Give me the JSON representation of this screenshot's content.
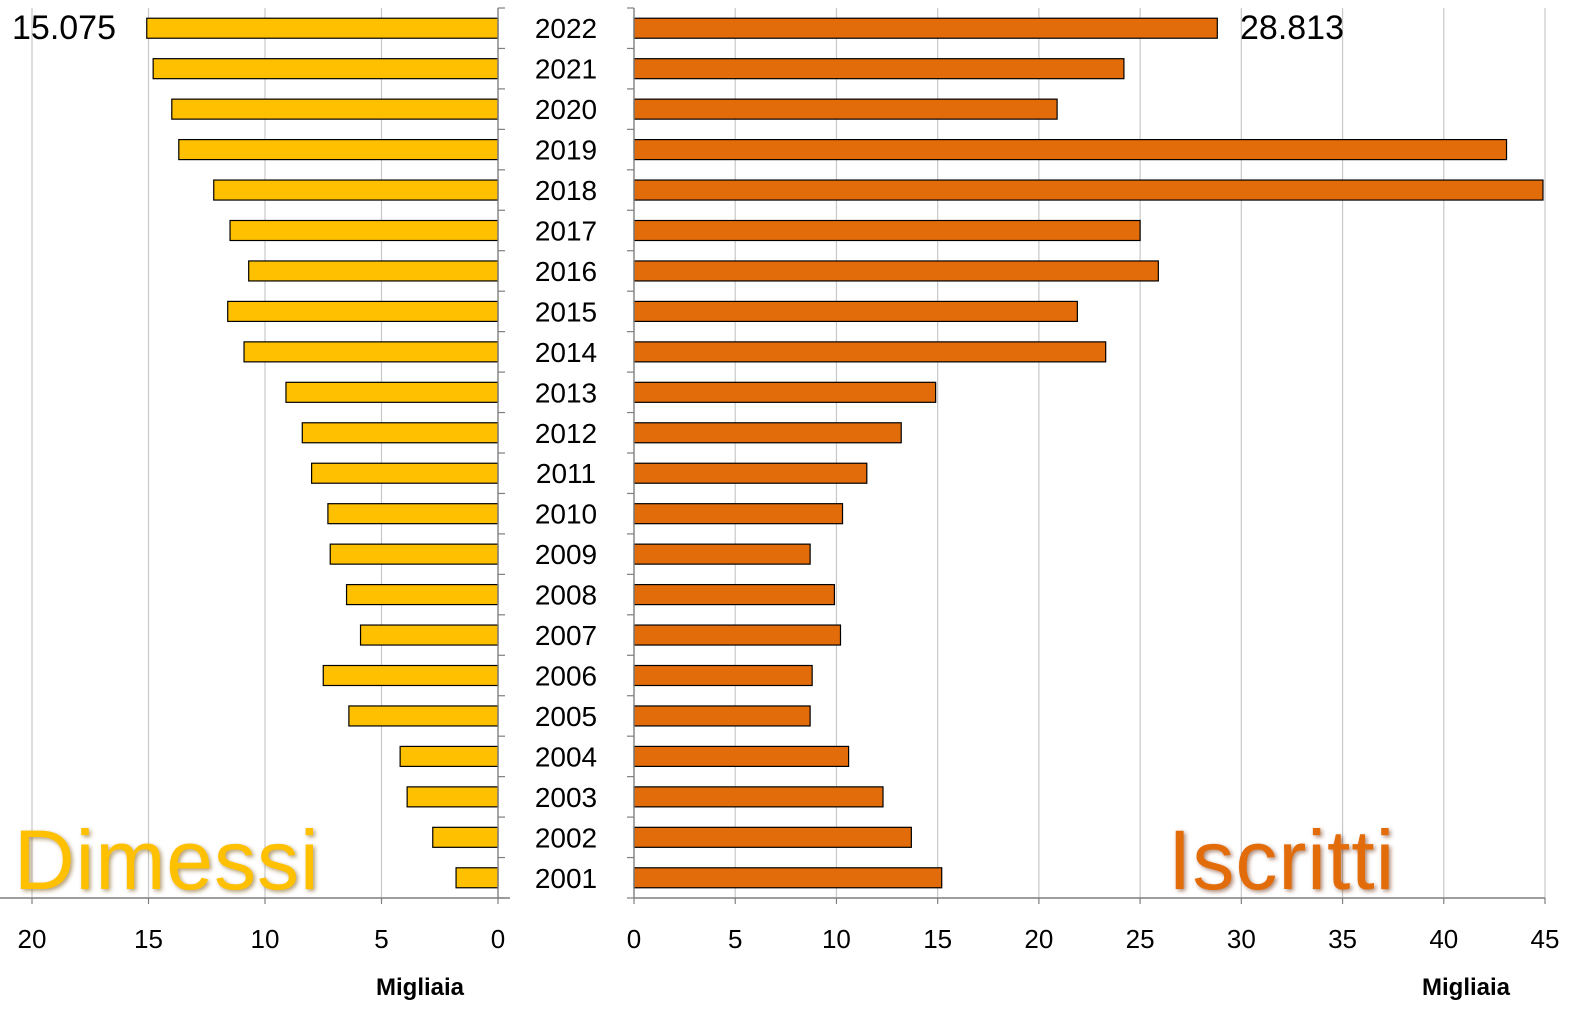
{
  "chart_data": {
    "type": "bar",
    "orientation": "horizontal",
    "layout": "back-to-back",
    "categories": [
      "2001",
      "2002",
      "2003",
      "2004",
      "2005",
      "2006",
      "2007",
      "2008",
      "2009",
      "2010",
      "2011",
      "2012",
      "2013",
      "2014",
      "2015",
      "2016",
      "2017",
      "2018",
      "2019",
      "2020",
      "2021",
      "2022"
    ],
    "series": [
      {
        "name": "Dimessi",
        "side": "left",
        "color": "#FFC000",
        "values": [
          1.8,
          2.8,
          3.9,
          4.2,
          6.4,
          7.5,
          5.9,
          6.5,
          7.2,
          7.3,
          8.0,
          8.4,
          9.1,
          10.9,
          11.6,
          10.7,
          11.5,
          12.2,
          13.7,
          14.0,
          14.8,
          15.075
        ],
        "xlim": [
          0,
          20
        ],
        "xticks": [
          "20",
          "15",
          "10",
          "5",
          "0"
        ],
        "xlabel": "Migliaia",
        "highlight_label": "15.075"
      },
      {
        "name": "Iscritti",
        "side": "right",
        "color": "#E36C0A",
        "values": [
          15.2,
          13.7,
          12.3,
          10.6,
          8.7,
          8.8,
          10.2,
          9.9,
          8.7,
          10.3,
          11.5,
          13.2,
          14.9,
          23.3,
          21.9,
          25.9,
          25.0,
          44.9,
          43.1,
          20.9,
          24.2,
          28.813
        ],
        "xlim": [
          0,
          45
        ],
        "xticks": [
          "0",
          "5",
          "10",
          "15",
          "20",
          "25",
          "30",
          "35",
          "40",
          "45"
        ],
        "xlabel": "Migliaia",
        "highlight_label": "28.813"
      }
    ],
    "grid": true,
    "gridlines": "vertical"
  }
}
